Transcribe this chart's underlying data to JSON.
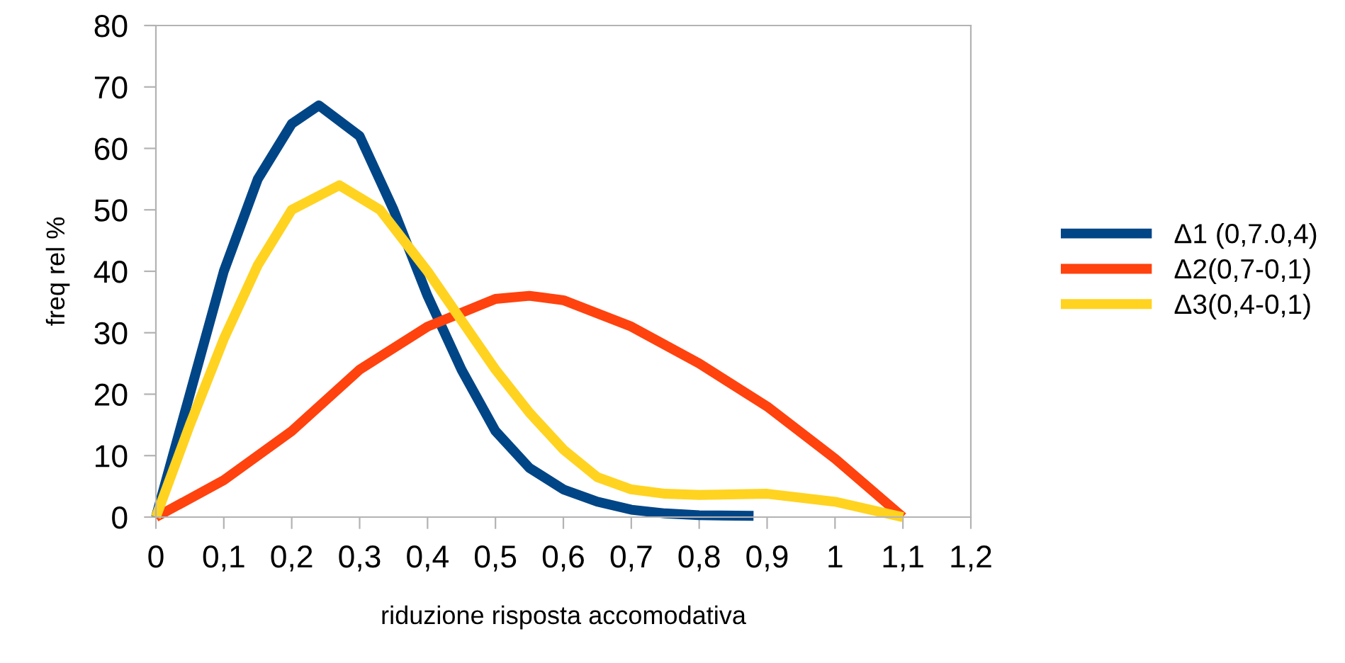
{
  "chart_data": {
    "type": "line",
    "xlabel": "riduzione risposta accomodativa",
    "ylabel": "freq rel %",
    "xlim": [
      0,
      1.2
    ],
    "xticks": [
      {
        "value": 0,
        "label": "0"
      },
      {
        "value": 0.1,
        "label": "0,1"
      },
      {
        "value": 0.2,
        "label": "0,2"
      },
      {
        "value": 0.3,
        "label": "0,3"
      },
      {
        "value": 0.4,
        "label": "0,4"
      },
      {
        "value": 0.5,
        "label": "0,5"
      },
      {
        "value": 0.6,
        "label": "0,6"
      },
      {
        "value": 0.7,
        "label": "0,7"
      },
      {
        "value": 0.8,
        "label": "0,8"
      },
      {
        "value": 0.9,
        "label": "0,9"
      },
      {
        "value": 1,
        "label": "1"
      },
      {
        "value": 1.1,
        "label": "1,1"
      },
      {
        "value": 1.2,
        "label": "1,2"
      }
    ],
    "ylim": [
      0,
      80
    ],
    "yticks": [
      0,
      10,
      20,
      30,
      40,
      50,
      60,
      70,
      80
    ],
    "grid": false,
    "legend": "right",
    "marker": "none",
    "line_style": "solid",
    "series": [
      {
        "name": "Δ1 (0,7.0,4)",
        "color": "#004586",
        "x": [
          0,
          0.05,
          0.1,
          0.15,
          0.2,
          0.24,
          0.3,
          0.35,
          0.4,
          0.45,
          0.5,
          0.55,
          0.6,
          0.65,
          0.7,
          0.75,
          0.8,
          0.88
        ],
        "values": [
          0,
          20,
          40,
          55,
          64,
          67,
          62,
          50,
          36,
          24,
          14,
          8,
          4.5,
          2.5,
          1.2,
          0.6,
          0.3,
          0.2
        ]
      },
      {
        "name": "Δ2(0,7-0,1)",
        "color": "#ff420e",
        "x": [
          0,
          0.1,
          0.2,
          0.3,
          0.4,
          0.5,
          0.55,
          0.6,
          0.7,
          0.8,
          0.9,
          1.0,
          1.1
        ],
        "values": [
          0,
          6,
          14,
          24,
          31,
          35.5,
          36,
          35.3,
          31,
          25,
          18,
          9.5,
          0
        ]
      },
      {
        "name": "Δ3(0,4-0,1)",
        "color": "#ffd320",
        "x": [
          0,
          0.05,
          0.1,
          0.15,
          0.2,
          0.27,
          0.33,
          0.4,
          0.45,
          0.5,
          0.55,
          0.6,
          0.65,
          0.7,
          0.75,
          0.8,
          0.9,
          1.0,
          1.1
        ],
        "values": [
          0,
          15,
          29,
          41,
          50,
          54,
          50,
          40,
          32,
          24,
          17,
          11,
          6.5,
          4.5,
          3.8,
          3.6,
          3.8,
          2.5,
          0
        ]
      }
    ]
  }
}
